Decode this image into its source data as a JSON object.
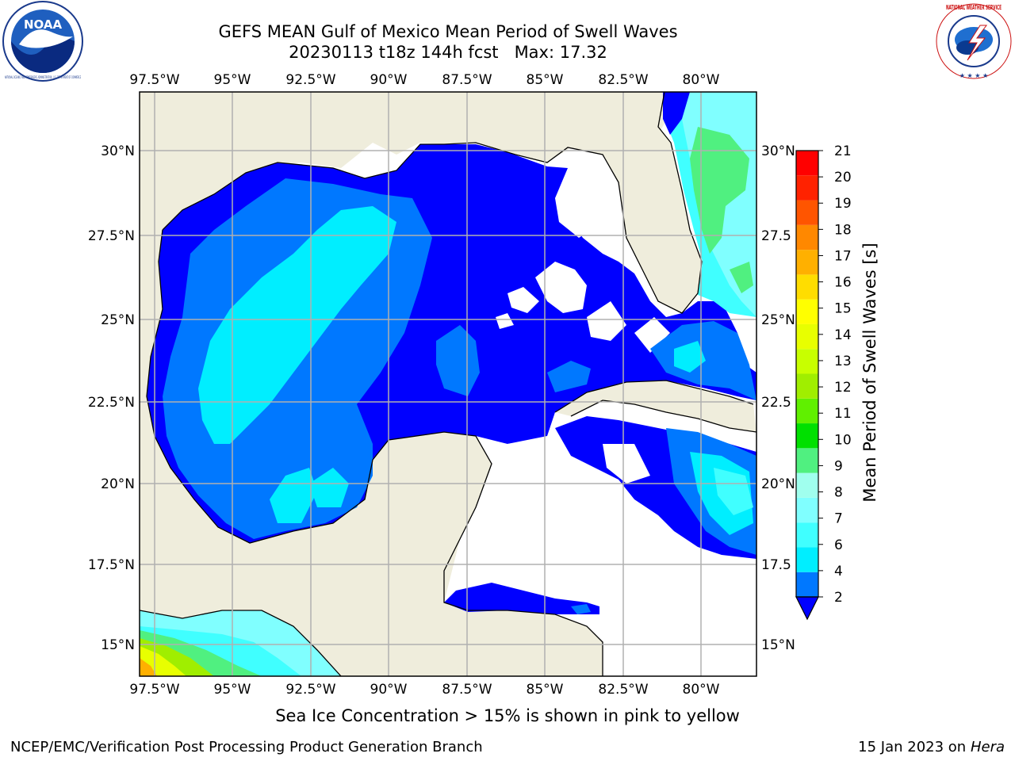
{
  "header": {
    "title_line1": "GEFS MEAN Gulf of Mexico Mean Period of Swell Waves",
    "title_line2": "20230113 t18z 144h fcst   Max: 17.32"
  },
  "logos": {
    "noaa_text": "NOAA",
    "noaa_ring_text": "NATIONAL OCEANIC AND ATMOSPHERIC ADMINISTRATION · U.S. DEPARTMENT OF COMMERCE",
    "nws_ring_text": "NATIONAL WEATHER SERVICE"
  },
  "map": {
    "lon_labels": [
      "97.5°W",
      "95°W",
      "92.5°W",
      "90°W",
      "87.5°W",
      "85°W",
      "82.5°W",
      "80°W"
    ],
    "lat_labels_left": [
      "30°N",
      "27.5°N",
      "25°N",
      "22.5°N",
      "20°N",
      "17.5°N",
      "15°N"
    ],
    "lat_labels_right": [
      "30°N",
      "27.5",
      "25°N",
      "22.5",
      "20°N",
      "17.5",
      "15°N"
    ],
    "land_color": "#efeddc",
    "gridline_color": "#b0b0b0"
  },
  "colorbar": {
    "label": "Mean Period of Swell Waves [s]",
    "ticks": [
      "2",
      "4",
      "6",
      "7",
      "8",
      "9",
      "10",
      "11",
      "12",
      "13",
      "14",
      "15",
      "16",
      "17",
      "18",
      "19",
      "20",
      "21"
    ],
    "colors": [
      "#0000ff",
      "#0078ff",
      "#00eeff",
      "#40ffff",
      "#80ffff",
      "#a0ffee",
      "#50f080",
      "#00e000",
      "#60f000",
      "#a0ee00",
      "#c8ff00",
      "#e8ff00",
      "#ffff00",
      "#ffdd00",
      "#ffb000",
      "#ff8800",
      "#ff5500",
      "#ff2200",
      "#ff0000"
    ]
  },
  "footer": {
    "ice_note": "Sea Ice Concentration > 15% is shown in pink to yellow",
    "producer": "NCEP/EMC/Verification Post Processing Product Generation Branch",
    "date": "15 Jan 2023 on ",
    "machine": "Hera"
  }
}
